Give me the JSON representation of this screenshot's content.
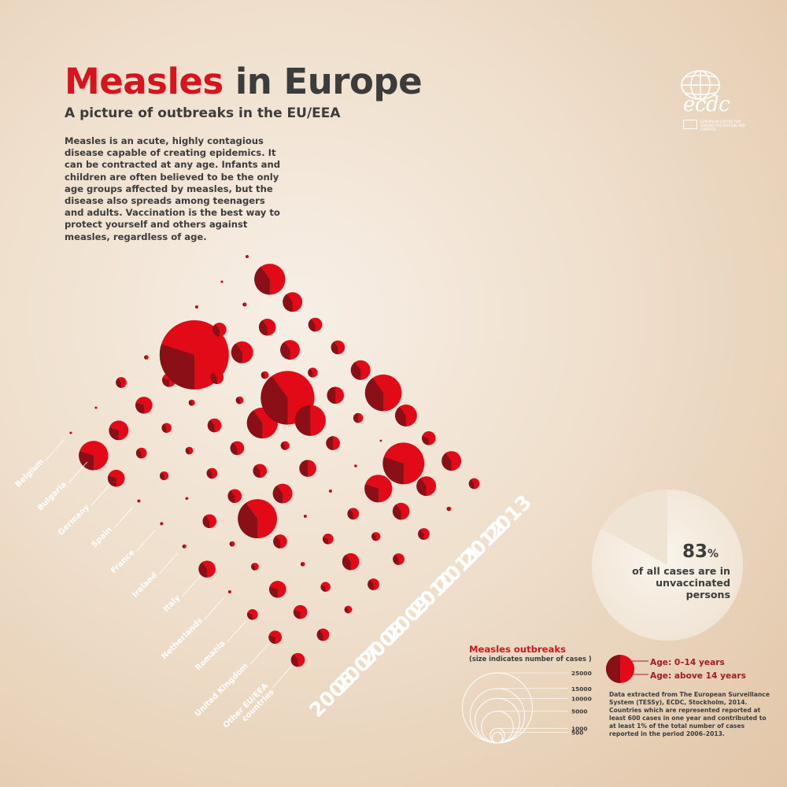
{
  "header": {
    "title_red": "Measles",
    "title_dark": "in Europe",
    "subtitle": "A picture of outbreaks in the EU/EEA",
    "intro": "Measles is an acute, highly contagious disease capable of creating epidemics. It can be contracted at any age. Infants and children are often believed to be the only age groups affected by measles, but the disease also spreads among teenagers and adults. Vaccination is the best way to protect yourself and others against measles, regardless of age."
  },
  "logo": {
    "name": "ecdc",
    "subtitle": "EUROPEAN CENTRE FOR DISEASE PREVENTION AND CONTROL",
    "icon": "globe-icon"
  },
  "colors": {
    "age_0_14": "#e30a17",
    "age_above_14": "#8b0f17",
    "accent": "#d7141d",
    "text": "#3c3c3c"
  },
  "stat": {
    "value": "83",
    "unit": "%",
    "fraction": 0.83,
    "label": "of all cases are in unvaccinated persons"
  },
  "legend": {
    "title": "Measles outbreaks",
    "subtitle": "(size indicates number of cases )",
    "sizes": [
      "25000",
      "15000",
      "10000",
      "5000",
      "1000",
      "500"
    ],
    "age_0_14": "Age: 0–14 years",
    "age_above_14": "Age: above 14 years"
  },
  "source": "Data extracted from The European Surveillance System (TESSy), ECDC, Stockholm, 2014. Countries which are represented reported at least 600 cases in one year and contributed to at least 1% of the total number of cases reported in the period 2006–2013.",
  "chart_data": {
    "type": "bubble-matrix",
    "years": [
      "2006",
      "2007",
      "2008",
      "2009",
      "2010",
      "2011",
      "2012",
      "2013"
    ],
    "countries": [
      "Belgium",
      "Bulgaria",
      "Germany",
      "Spain",
      "France",
      "Ireland",
      "Italy",
      "Netherlands",
      "Romania",
      "United Kingdom",
      "Other EU/EEA countries"
    ],
    "cases": [
      [
        30,
        4500,
        1500,
        50,
        50,
        80,
        1500,
        50,
        600,
        900,
        1000
      ],
      [
        30,
        2000,
        600,
        400,
        40,
        1000,
        150,
        300,
        1500,
        1000,
        800
      ],
      [
        600,
        1500,
        500,
        300,
        600,
        1000,
        8000,
        1000,
        100,
        500,
        300
      ],
      [
        100,
        1000,
        200,
        1000,
        1000,
        1000,
        2000,
        50,
        600,
        1500,
        700
      ],
      [
        50,
        25000,
        900,
        300,
        5000,
        400,
        1500,
        50,
        700,
        400,
        700
      ],
      [
        50,
        1000,
        2500,
        300,
        15000,
        5000,
        1000,
        40,
        4000,
        1500,
        700
      ],
      [
        30,
        80,
        1500,
        2000,
        500,
        1500,
        500,
        20,
        9000,
        2000,
        100
      ],
      [
        50,
        5000,
        2000,
        1000,
        1000,
        2000,
        7000,
        2500,
        1000,
        2000,
        600
      ]
    ],
    "share_age_above_14": [
      [
        0.5,
        0.3,
        0.3,
        0.4,
        0.4,
        0.4,
        0.4,
        0.4,
        0.3,
        0.3,
        0.4
      ],
      [
        0.4,
        0.3,
        0.4,
        0.4,
        0.4,
        0.4,
        0.4,
        0.4,
        0.3,
        0.3,
        0.4
      ],
      [
        0.4,
        0.3,
        0.4,
        0.4,
        0.4,
        0.4,
        0.4,
        0.4,
        0.4,
        0.3,
        0.4
      ],
      [
        0.4,
        0.3,
        0.4,
        0.4,
        0.4,
        0.4,
        0.4,
        0.4,
        0.3,
        0.4,
        0.4
      ],
      [
        0.4,
        0.3,
        0.4,
        0.4,
        0.4,
        0.4,
        0.5,
        0.4,
        0.4,
        0.4,
        0.4
      ],
      [
        0.4,
        0.4,
        0.4,
        0.4,
        0.4,
        0.5,
        0.5,
        0.4,
        0.3,
        0.4,
        0.4
      ],
      [
        0.4,
        0.4,
        0.4,
        0.4,
        0.4,
        0.5,
        0.5,
        0.4,
        0.3,
        0.4,
        0.4
      ],
      [
        0.4,
        0.4,
        0.4,
        0.4,
        0.4,
        0.4,
        0.4,
        0.4,
        0.3,
        0.4,
        0.4
      ]
    ]
  }
}
